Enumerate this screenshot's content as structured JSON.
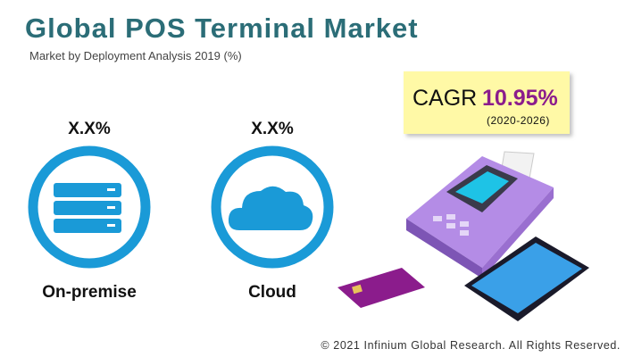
{
  "header": {
    "title": "Global POS Terminal Market",
    "subtitle": "Market by Deployment Analysis 2019 (%)"
  },
  "segments": [
    {
      "label": "On-premise",
      "value": "X.X%"
    },
    {
      "label": "Cloud",
      "value": "X.X%"
    }
  ],
  "cagr": {
    "label": "CAGR",
    "value": "10.95%",
    "period": "(2020-2026)"
  },
  "footer": "© 2021 Infinium Global Research. All Rights Reserved."
}
